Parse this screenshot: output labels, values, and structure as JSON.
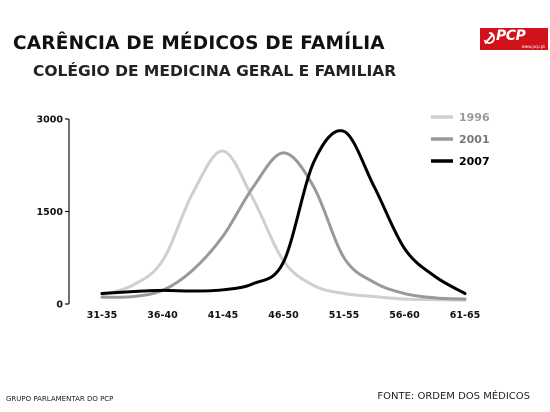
{
  "header": {
    "title": "CARÊNCIA DE MÉDICOS DE FAMÍLIA",
    "subtitle": "COLÉGIO DE MEDICINA GERAL E FAMILIAR"
  },
  "logo": {
    "text": "PCP",
    "site": "www.pcp.pt",
    "color": "#d1121b"
  },
  "footer": {
    "left": "GRUPO PARLAMENTAR DO PCP",
    "right": "FONTE: ORDEM DOS MÉDICOS"
  },
  "chart_data": {
    "type": "line",
    "title": "CARÊNCIA DE MÉDICOS DE FAMÍLIA",
    "subtitle": "COLÉGIO DE MEDICINA GERAL E FAMILIAR",
    "xlabel": "",
    "ylabel": "",
    "categories": [
      "31-35",
      "36-40",
      "41-45",
      "46-50",
      "51-55",
      "56-60",
      "61-65"
    ],
    "yticks": [
      0,
      1500,
      3000
    ],
    "ylim": [
      0,
      3000
    ],
    "grid": false,
    "legend_position": "top-right",
    "series": [
      {
        "name": "1996",
        "color": "#cfcfcf",
        "x": [
          0,
          0.5,
          1,
          1.5,
          2,
          2.5,
          3,
          3.5,
          4,
          4.5,
          5,
          5.5,
          6
        ],
        "values": [
          150,
          300,
          700,
          1800,
          2480,
          1700,
          700,
          300,
          170,
          120,
          80,
          70,
          60
        ]
      },
      {
        "name": "2001",
        "color": "#999999",
        "x": [
          0,
          0.5,
          1,
          1.5,
          2,
          2.5,
          3,
          3.5,
          4,
          4.5,
          5,
          5.5,
          6
        ],
        "values": [
          110,
          120,
          220,
          550,
          1100,
          1900,
          2450,
          1900,
          750,
          350,
          170,
          100,
          80
        ]
      },
      {
        "name": "2007",
        "color": "#000000",
        "x": [
          0,
          0.5,
          1,
          1.5,
          2,
          2.5,
          3,
          3.5,
          4,
          4.5,
          5,
          5.5,
          6
        ],
        "values": [
          170,
          200,
          220,
          210,
          230,
          330,
          680,
          2300,
          2800,
          1900,
          900,
          450,
          170
        ]
      }
    ]
  }
}
